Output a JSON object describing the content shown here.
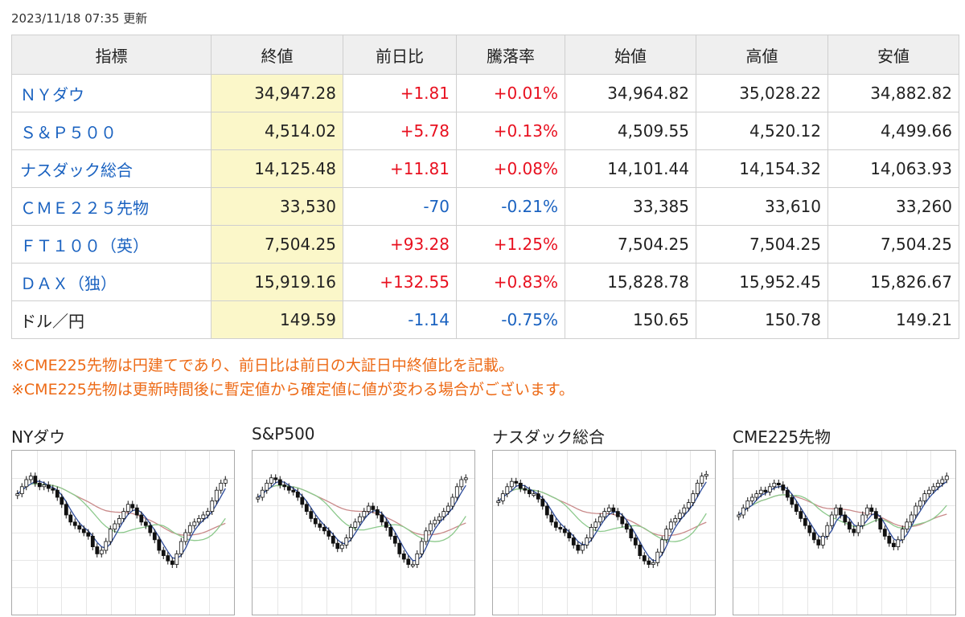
{
  "updated": "2023/11/18 07:35 更新",
  "table": {
    "headers": [
      "指標",
      "終値",
      "前日比",
      "騰落率",
      "始値",
      "高値",
      "安値"
    ],
    "rows": [
      {
        "name": "ＮＹダウ",
        "close": "34,947.28",
        "change": "+1.81",
        "rate": "+0.01%",
        "open": "34,964.82",
        "high": "35,028.22",
        "low": "34,882.82",
        "dir": "up",
        "name_link": true
      },
      {
        "name": "Ｓ＆Ｐ５００",
        "close": "4,514.02",
        "change": "+5.78",
        "rate": "+0.13%",
        "open": "4,509.55",
        "high": "4,520.12",
        "low": "4,499.66",
        "dir": "up",
        "name_link": true
      },
      {
        "name": "ナスダック総合",
        "close": "14,125.48",
        "change": "+11.81",
        "rate": "+0.08%",
        "open": "14,101.44",
        "high": "14,154.32",
        "low": "14,063.93",
        "dir": "up",
        "name_link": true
      },
      {
        "name": "ＣＭＥ２２５先物",
        "close": "33,530",
        "change": "-70",
        "rate": "-0.21%",
        "open": "33,385",
        "high": "33,610",
        "low": "33,260",
        "dir": "down",
        "name_link": true
      },
      {
        "name": "ＦＴ１００（英）",
        "close": "7,504.25",
        "change": "+93.28",
        "rate": "+1.25%",
        "open": "7,504.25",
        "high": "7,504.25",
        "low": "7,504.25",
        "dir": "up",
        "name_link": true
      },
      {
        "name": "ＤＡＸ（独）",
        "close": "15,919.16",
        "change": "+132.55",
        "rate": "+0.83%",
        "open": "15,828.78",
        "high": "15,952.45",
        "low": "15,826.67",
        "dir": "up",
        "name_link": true
      },
      {
        "name": "ドル／円",
        "close": "149.59",
        "change": "-1.14",
        "rate": "-0.75%",
        "open": "150.65",
        "high": "150.78",
        "low": "149.21",
        "dir": "down",
        "name_link": false
      }
    ]
  },
  "notes": [
    "※CME225先物は円建てであり、前日比は前日の大証日中終値比を記載。",
    "※CME225先物は更新時間後に暫定値から確定値に値が変わる場合がございます。"
  ],
  "colors": {
    "up": "#e8101f",
    "down": "#1a62c0",
    "note": "#ed6a16",
    "close_bg": "#fbf7c9",
    "ma_short": "#2c4a9a",
    "ma_mid": "#8cc98c",
    "ma_long": "#c98a8a"
  },
  "charts": [
    {
      "title": "NYダウ",
      "closes": [
        62,
        66,
        70,
        72,
        68,
        66,
        67,
        65,
        64,
        60,
        56,
        50,
        46,
        44,
        42,
        40,
        38,
        32,
        28,
        30,
        35,
        42,
        45,
        48,
        52,
        56,
        54,
        50,
        46,
        44,
        40,
        36,
        30,
        27,
        24,
        22,
        28,
        35,
        40,
        44,
        46,
        48,
        50,
        52,
        58,
        64,
        68,
        70
      ]
    },
    {
      "title": "S&P500",
      "closes": [
        60,
        64,
        68,
        71,
        70,
        67,
        66,
        64,
        63,
        60,
        56,
        52,
        48,
        45,
        43,
        41,
        38,
        34,
        31,
        33,
        37,
        43,
        46,
        49,
        52,
        55,
        53,
        50,
        46,
        43,
        38,
        34,
        28,
        25,
        22,
        22,
        28,
        35,
        41,
        45,
        47,
        49,
        52,
        55,
        60,
        66,
        70,
        71
      ]
    },
    {
      "title": "ナスダック総合",
      "closes": [
        58,
        62,
        66,
        69,
        68,
        65,
        64,
        62,
        62,
        59,
        55,
        50,
        46,
        43,
        42,
        40,
        37,
        33,
        30,
        33,
        37,
        43,
        46,
        49,
        52,
        54,
        52,
        49,
        45,
        42,
        37,
        33,
        27,
        24,
        22,
        23,
        29,
        36,
        42,
        46,
        48,
        51,
        54,
        57,
        62,
        68,
        72,
        73
      ]
    },
    {
      "title": "CME225先物",
      "closes": [
        50,
        54,
        58,
        60,
        62,
        64,
        63,
        66,
        68,
        67,
        64,
        60,
        56,
        52,
        48,
        44,
        40,
        36,
        33,
        38,
        44,
        50,
        54,
        50,
        46,
        42,
        40,
        44,
        50,
        54,
        52,
        48,
        42,
        38,
        34,
        32,
        36,
        42,
        46,
        50,
        55,
        58,
        62,
        64,
        66,
        68,
        70,
        72
      ]
    }
  ]
}
